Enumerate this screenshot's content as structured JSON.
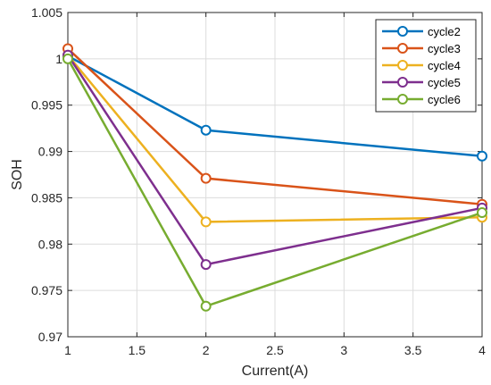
{
  "chart_data": {
    "type": "line",
    "xlabel": "Current(A)",
    "ylabel": "SOH",
    "xlim": [
      1,
      4
    ],
    "ylim": [
      0.97,
      1.005
    ],
    "x_ticks": [
      1,
      1.5,
      2,
      2.5,
      3,
      3.5,
      4
    ],
    "x_tick_labels": [
      "1",
      "1.5",
      "2",
      "2.5",
      "3",
      "3.5",
      "4"
    ],
    "y_ticks": [
      0.97,
      0.975,
      0.98,
      0.985,
      0.99,
      0.995,
      1,
      1.005
    ],
    "y_tick_labels": [
      "0.97",
      "0.975",
      "0.98",
      "0.985",
      "0.99",
      "0.995",
      "1",
      "1.005"
    ],
    "grid": true,
    "legend_position": "top-right",
    "marker": "circle",
    "x": [
      1,
      2,
      4
    ],
    "series": [
      {
        "name": "cycle2",
        "color": "#0072BD",
        "values": [
          1.0003,
          0.9923,
          0.9895
        ]
      },
      {
        "name": "cycle3",
        "color": "#D95319",
        "values": [
          1.0011,
          0.9871,
          0.9843
        ]
      },
      {
        "name": "cycle4",
        "color": "#EDB120",
        "values": [
          1.0004,
          0.9824,
          0.9829
        ]
      },
      {
        "name": "cycle5",
        "color": "#7E2F8E",
        "values": [
          1.0004,
          0.9778,
          0.9839
        ]
      },
      {
        "name": "cycle6",
        "color": "#77AC30",
        "values": [
          1.0,
          0.9733,
          0.9834
        ]
      }
    ]
  }
}
